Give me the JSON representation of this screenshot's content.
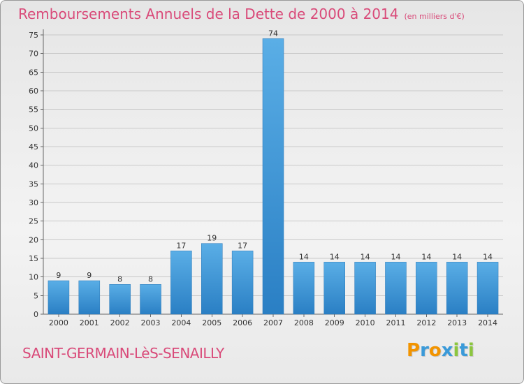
{
  "title": "Remboursements Annuels de la Dette de 2000 à 2014",
  "unit_note": "(en milliers d'€)",
  "commune": "SAINT-GERMAIN-LèS-SENAILLY",
  "logo": {
    "text": "Proxiti",
    "letters": [
      "P",
      "r",
      "o",
      "x",
      "i",
      "t",
      "i"
    ],
    "colors": [
      "#f29400",
      "#3a9ad9",
      "#f29400",
      "#3a9ad9",
      "#8cc63f",
      "#3a9ad9",
      "#8cc63f"
    ]
  },
  "colors": {
    "title": "#d94a79",
    "bar_light": "#5aaee6",
    "bar_dark": "#2a7fc4",
    "grid": "#c9c9c9"
  },
  "chart_data": {
    "type": "bar",
    "categories": [
      "2000",
      "2001",
      "2002",
      "2003",
      "2004",
      "2005",
      "2006",
      "2007",
      "2008",
      "2009",
      "2010",
      "2011",
      "2012",
      "2013",
      "2014"
    ],
    "values": [
      9,
      9,
      8,
      8,
      17,
      19,
      17,
      74,
      14,
      14,
      14,
      14,
      14,
      14,
      14
    ],
    "data_labels": [
      "9",
      "9",
      "8",
      "8",
      "17",
      "19",
      "17",
      "74",
      "14",
      "14",
      "14",
      "14",
      "14",
      "14",
      "14"
    ],
    "y_ticks": [
      "0",
      "5",
      "10",
      "15",
      "20",
      "25",
      "30",
      "35",
      "40",
      "45",
      "50",
      "55",
      "60",
      "65",
      "70",
      "75"
    ],
    "ylim": [
      0,
      75
    ],
    "grid": true,
    "title": "Remboursements Annuels de la Dette de 2000 à 2014",
    "xlabel": "",
    "ylabel": ""
  }
}
